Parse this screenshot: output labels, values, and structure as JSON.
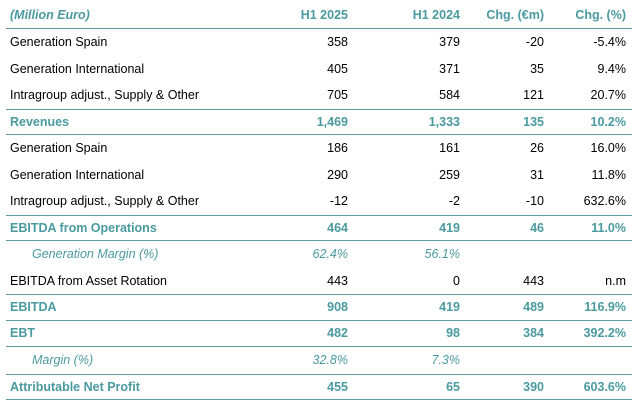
{
  "table": {
    "header": {
      "label": "(Million Euro)",
      "h1_2025": "H1 2025",
      "h1_2024": "H1 2024",
      "chg_abs": "Chg. (€m)",
      "chg_pct": "Chg. (%)"
    },
    "rows": [
      {
        "label": "Generation Spain",
        "h1_2025": "358",
        "h1_2024": "379",
        "chg_abs": "-20",
        "chg_pct": "-5.4%"
      },
      {
        "label": "Generation International",
        "h1_2025": "405",
        "h1_2024": "371",
        "chg_abs": "35",
        "chg_pct": "9.4%"
      },
      {
        "label": "Intragroup adjust., Supply & Other",
        "h1_2025": "705",
        "h1_2024": "584",
        "chg_abs": "121",
        "chg_pct": "20.7%"
      },
      {
        "label": "Revenues",
        "h1_2025": "1,469",
        "h1_2024": "1,333",
        "chg_abs": "135",
        "chg_pct": "10.2%"
      },
      {
        "label": "Generation Spain",
        "h1_2025": "186",
        "h1_2024": "161",
        "chg_abs": "26",
        "chg_pct": "16.0%"
      },
      {
        "label": "Generation International",
        "h1_2025": "290",
        "h1_2024": "259",
        "chg_abs": "31",
        "chg_pct": "11.8%"
      },
      {
        "label": "Intragroup adjust., Supply & Other",
        "h1_2025": "-12",
        "h1_2024": "-2",
        "chg_abs": "-10",
        "chg_pct": "632.6%"
      },
      {
        "label": "EBITDA from Operations",
        "h1_2025": "464",
        "h1_2024": "419",
        "chg_abs": "46",
        "chg_pct": "11.0%"
      },
      {
        "label": "Generation Margin (%)",
        "h1_2025": "62.4%",
        "h1_2024": "56.1%",
        "chg_abs": "",
        "chg_pct": ""
      },
      {
        "label": "EBITDA from Asset Rotation",
        "h1_2025": "443",
        "h1_2024": "0",
        "chg_abs": "443",
        "chg_pct": "n.m"
      },
      {
        "label": "EBITDA",
        "h1_2025": "908",
        "h1_2024": "419",
        "chg_abs": "489",
        "chg_pct": "116.9%"
      },
      {
        "label": "EBT",
        "h1_2025": "482",
        "h1_2024": "98",
        "chg_abs": "384",
        "chg_pct": "392.2%"
      },
      {
        "label": "Margin (%)",
        "h1_2025": "32.8%",
        "h1_2024": "7.3%",
        "chg_abs": "",
        "chg_pct": ""
      },
      {
        "label": "Attributable Net Profit",
        "h1_2025": "455",
        "h1_2024": "65",
        "chg_abs": "390",
        "chg_pct": "603.6%"
      }
    ]
  },
  "colors": {
    "accent": "#4a9aa0",
    "rule": "#5b9aa0",
    "text": "#000000"
  }
}
